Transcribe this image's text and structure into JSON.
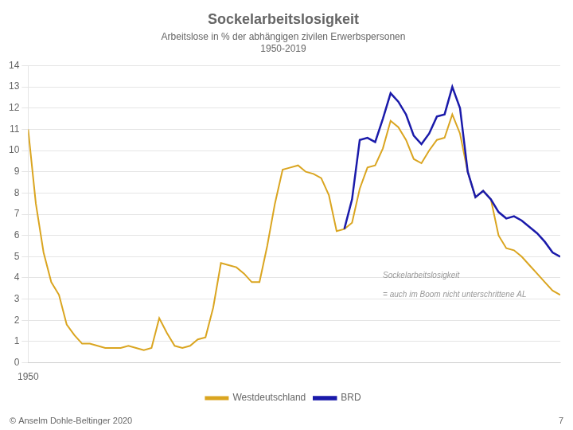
{
  "chart_data": {
    "type": "line",
    "title": "Sockelarbeitslosigkeit",
    "subtitle": [
      "Arbeitslose in % der abhängigen zivilen Erwerbspersonen",
      "1950-2019"
    ],
    "annotations": [
      {
        "text": "Sockelarbeitslosigkeit",
        "x": 1996,
        "y": 4.1
      },
      {
        "text": "= auch im Boom nicht unterschrittene AL",
        "x": 1996,
        "y": 3.2
      }
    ],
    "footer_left": "© Anselm Dohle-Beltinger 2020",
    "footer_right": "7",
    "xlim": [
      1950,
      2019
    ],
    "xticks": [
      1950
    ],
    "ylim": [
      0,
      14
    ],
    "yticks": [
      0,
      1,
      2,
      3,
      4,
      5,
      6,
      7,
      8,
      9,
      10,
      11,
      12,
      13,
      14
    ],
    "grid": true,
    "legend": "bottom",
    "series": [
      {
        "name": "Westdeutschland",
        "color": "#DAA520",
        "x": [
          1950,
          1951,
          1952,
          1953,
          1954,
          1955,
          1956,
          1957,
          1958,
          1959,
          1960,
          1961,
          1962,
          1963,
          1964,
          1965,
          1966,
          1967,
          1968,
          1969,
          1970,
          1971,
          1972,
          1973,
          1974,
          1975,
          1976,
          1977,
          1978,
          1979,
          1980,
          1981,
          1982,
          1983,
          1984,
          1985,
          1986,
          1987,
          1988,
          1989,
          1990,
          1991,
          1992,
          1993,
          1994,
          1995,
          1996,
          1997,
          1998,
          1999,
          2000,
          2001,
          2002,
          2003,
          2004,
          2005,
          2006,
          2007,
          2008,
          2009,
          2010,
          2011,
          2012,
          2013,
          2014,
          2015,
          2016,
          2017,
          2018,
          2019
        ],
        "values": [
          11.0,
          7.5,
          5.2,
          3.8,
          3.2,
          1.8,
          1.3,
          0.9,
          0.9,
          0.8,
          0.7,
          0.7,
          0.7,
          0.8,
          0.7,
          0.6,
          0.7,
          2.1,
          1.4,
          0.8,
          0.7,
          0.8,
          1.1,
          1.2,
          2.6,
          4.7,
          4.6,
          4.5,
          4.2,
          3.8,
          3.8,
          5.5,
          7.5,
          9.1,
          9.2,
          9.3,
          9.0,
          8.9,
          8.7,
          7.9,
          6.2,
          6.3,
          6.6,
          8.2,
          9.2,
          9.3,
          10.1,
          11.4,
          11.1,
          10.5,
          9.6,
          9.4,
          10.0,
          10.5,
          10.6,
          11.7,
          10.8,
          9.0,
          7.8,
          8.1,
          7.7,
          6.0,
          5.4,
          5.3,
          5.0,
          4.6,
          4.2,
          3.8,
          3.4,
          3.2
        ]
      },
      {
        "name": "BRD",
        "color": "#1a1aaa",
        "x": [
          1991,
          1992,
          1993,
          1994,
          1995,
          1996,
          1997,
          1998,
          1999,
          2000,
          2001,
          2002,
          2003,
          2004,
          2005,
          2006,
          2007,
          2008,
          2009,
          2010,
          2011,
          2012,
          2013,
          2014,
          2015,
          2016,
          2017,
          2018,
          2019
        ],
        "values": [
          6.3,
          7.7,
          10.5,
          10.6,
          10.4,
          11.5,
          12.7,
          12.3,
          11.7,
          10.7,
          10.3,
          10.8,
          11.6,
          11.7,
          13.0,
          12.0,
          9.0,
          7.8,
          8.1,
          7.7,
          7.1,
          6.8,
          6.9,
          6.7,
          6.4,
          6.1,
          5.7,
          5.2,
          5.0
        ]
      }
    ]
  }
}
